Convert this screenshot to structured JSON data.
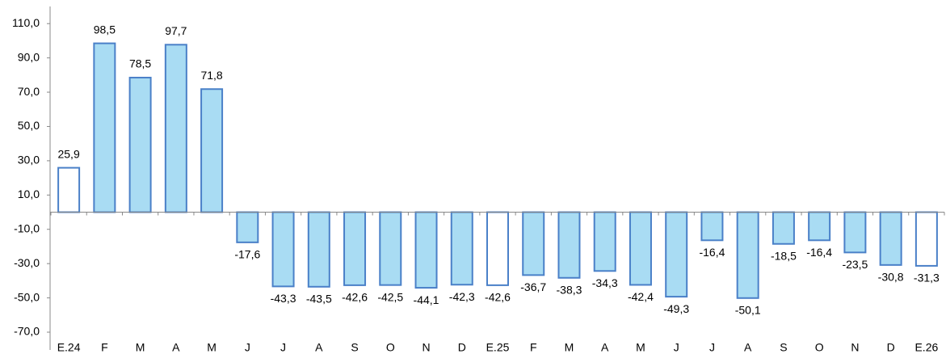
{
  "chart_data": {
    "type": "bar",
    "categories": [
      "E.24",
      "F",
      "M",
      "A",
      "M",
      "J",
      "J",
      "A",
      "S",
      "O",
      "N",
      "D",
      "E.25",
      "F",
      "M",
      "A",
      "M",
      "J",
      "J",
      "A",
      "S",
      "O",
      "N",
      "D",
      "E.26"
    ],
    "values": [
      25.9,
      98.5,
      78.5,
      97.7,
      71.8,
      -17.6,
      -43.3,
      -43.5,
      -42.6,
      -42.5,
      -44.1,
      -42.3,
      -42.6,
      -36.7,
      -38.3,
      -34.3,
      -42.4,
      -49.3,
      -16.4,
      -50.1,
      -18.5,
      -16.4,
      -23.5,
      -30.8,
      -31.3
    ],
    "value_labels": [
      "25,9",
      "98,5",
      "78,5",
      "97,7",
      "71,8",
      "-17,6",
      "-43,3",
      "-43,5",
      "-42,6",
      "-42,5",
      "-44,1",
      "-42,3",
      "-42,6",
      "-36,7",
      "-38,3",
      "-34,3",
      "-42,4",
      "-49,3",
      "-16,4",
      "-50,1",
      "-18,5",
      "-16,4",
      "-23,5",
      "-30,8",
      "-31,3"
    ],
    "colors": [
      "#ffffff",
      "#a9dcf3",
      "#a9dcf3",
      "#a9dcf3",
      "#a9dcf3",
      "#a9dcf3",
      "#a9dcf3",
      "#a9dcf3",
      "#a9dcf3",
      "#a9dcf3",
      "#a9dcf3",
      "#a9dcf3",
      "#ffffff",
      "#a9dcf3",
      "#a9dcf3",
      "#a9dcf3",
      "#a9dcf3",
      "#a9dcf3",
      "#a9dcf3",
      "#a9dcf3",
      "#a9dcf3",
      "#a9dcf3",
      "#a9dcf3",
      "#a9dcf3",
      "#ffffff"
    ],
    "edge_color": "#4a80c8",
    "ylim": [
      -70,
      120
    ],
    "yticks": [
      {
        "value": -70,
        "label": "-70,0"
      },
      {
        "value": -50,
        "label": "-50,0"
      },
      {
        "value": -30,
        "label": "-30,0"
      },
      {
        "value": -10,
        "label": "-10,0"
      },
      {
        "value": 10,
        "label": "10,0"
      },
      {
        "value": 30,
        "label": "30,0"
      },
      {
        "value": 50,
        "label": "50,0"
      },
      {
        "value": 70,
        "label": "70,0"
      },
      {
        "value": 90,
        "label": "90,0"
      },
      {
        "value": 110,
        "label": "110,0"
      }
    ],
    "grid": false
  }
}
